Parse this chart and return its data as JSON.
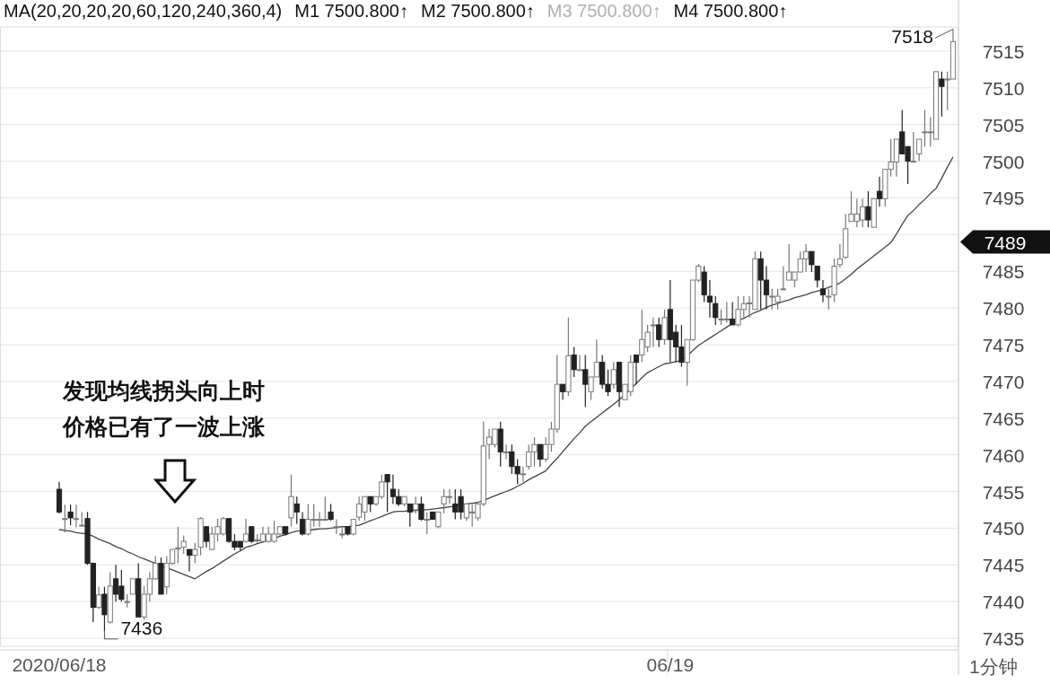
{
  "chart_data": {
    "type": "candlestick",
    "categories": [
      "2020/06/18",
      null,
      null,
      null,
      null,
      null,
      null,
      null,
      null,
      null,
      null,
      null,
      null,
      null,
      null,
      null,
      null,
      null,
      null,
      null,
      null,
      null,
      null,
      null,
      null,
      null,
      null,
      null,
      null,
      null,
      null,
      null,
      null,
      null,
      null,
      null,
      null,
      null,
      null,
      null,
      null,
      null,
      null,
      null,
      null,
      null,
      null,
      null,
      null,
      null,
      null,
      null,
      null,
      null,
      null,
      null,
      null,
      null,
      null,
      null,
      null,
      null,
      null,
      null,
      null,
      null,
      null,
      null,
      null,
      null,
      null,
      null,
      null,
      null,
      null,
      null,
      null,
      null,
      null,
      null,
      null,
      null,
      null,
      null,
      null,
      null,
      null,
      null,
      null,
      null,
      null,
      null,
      null,
      null,
      null,
      null,
      null,
      null,
      null,
      null,
      null,
      null,
      null,
      null,
      null,
      null,
      null,
      null,
      "06/19",
      null,
      null,
      null,
      null,
      null,
      null,
      null,
      null,
      null,
      null,
      null,
      null,
      null,
      null,
      null,
      null,
      null,
      null,
      null,
      null,
      null,
      null,
      null,
      null,
      null,
      null,
      null,
      null,
      null,
      null,
      null,
      null,
      null,
      null,
      null,
      null,
      null,
      null,
      null,
      null,
      null,
      null,
      null,
      null,
      null,
      null,
      null,
      null,
      null,
      null
    ],
    "ohlc": [
      [
        7455.3,
        7456.3,
        7452,
        7452.2
      ],
      [
        7451.3,
        7453.2,
        7449.4,
        7451.3
      ],
      [
        7452.2,
        7453.2,
        7450.4,
        7451.4
      ],
      [
        7451.3,
        7453.2,
        7450.1,
        7451.3
      ],
      [
        7450.4,
        7452.2,
        7450.2,
        7450.4
      ],
      [
        7451.3,
        7452.2,
        7445,
        7445.2
      ],
      [
        7445.2,
        7445.3,
        7437.2,
        7439.2
      ],
      [
        7439.2,
        7442,
        7439,
        7440.9
      ],
      [
        7441,
        7442,
        7436,
        7438.2
      ],
      [
        7437.2,
        7444,
        7437,
        7442.1
      ],
      [
        7443.1,
        7445,
        7440,
        7441
      ],
      [
        7442.1,
        7444.3,
        7440,
        7440.3
      ],
      [
        7440,
        7441,
        7439.2,
        7440
      ],
      [
        7441,
        7443.1,
        7441,
        7443.1
      ],
      [
        7443.1,
        7445.2,
        7437.9,
        7437.9
      ],
      [
        7437.9,
        7442.1,
        7437.5,
        7441
      ],
      [
        7441,
        7444,
        7440,
        7443.1
      ],
      [
        7443.1,
        7446.2,
        7443,
        7445.2
      ],
      [
        7445.2,
        7446,
        7441,
        7441
      ],
      [
        7442,
        7446.2,
        7441,
        7445.2
      ],
      [
        7445.2,
        7447.1,
        7445,
        7447.1
      ],
      [
        7447.3,
        7450.2,
        7445.2,
        7447.3
      ],
      [
        7447.4,
        7449,
        7446.5,
        7448.2
      ],
      [
        7447.1,
        7447.1,
        7444.1,
        7446.3
      ],
      [
        7446.3,
        7448,
        7445.2,
        7447.1
      ],
      [
        7447.4,
        7451.5,
        7446.3,
        7451.3
      ],
      [
        7450.2,
        7450.3,
        7447.4,
        7448.2
      ],
      [
        7447.1,
        7450.2,
        7447,
        7449.2
      ],
      [
        7449.2,
        7451.3,
        7448.2,
        7450.2
      ],
      [
        7449.2,
        7451.5,
        7449,
        7451.3
      ],
      [
        7451.3,
        7451.4,
        7448,
        7448.2
      ],
      [
        7448.2,
        7449.2,
        7447,
        7447.4
      ],
      [
        7448.2,
        7448.2,
        7447,
        7447.4
      ],
      [
        7448.2,
        7451.3,
        7448,
        7449.2
      ],
      [
        7450.2,
        7450.3,
        7448,
        7448.2
      ],
      [
        7448.4,
        7449.2,
        7448,
        7448.4
      ],
      [
        7448.2,
        7450.2,
        7448,
        7449.2
      ],
      [
        7448.2,
        7450.2,
        7448,
        7449.2
      ],
      [
        7448.2,
        7451,
        7448,
        7449.2
      ],
      [
        7449.2,
        7450.2,
        7449,
        7450.2
      ],
      [
        7450.2,
        7450.2,
        7449,
        7449.2
      ],
      [
        7451.4,
        7457.3,
        7450.2,
        7454.3
      ],
      [
        7453.3,
        7454.3,
        7450.6,
        7452.2
      ],
      [
        7451.2,
        7452.2,
        7449,
        7449.2
      ],
      [
        7449.2,
        7453.3,
        7449,
        7451.2
      ],
      [
        7451.2,
        7453.3,
        7450.2,
        7451.2
      ],
      [
        7451.2,
        7452.2,
        7450.2,
        7451.2
      ],
      [
        7451.2,
        7454.3,
        7451,
        7451.2
      ],
      [
        7452.2,
        7453.3,
        7451,
        7451.2
      ],
      [
        7450.2,
        7451.2,
        7449.2,
        7450.2
      ],
      [
        7449.2,
        7450,
        7448.6,
        7449.2
      ],
      [
        7450.2,
        7450.2,
        7449,
        7449.2
      ],
      [
        7449.2,
        7451.2,
        7449,
        7451.2
      ],
      [
        7451.5,
        7454.3,
        7451,
        7453.3
      ],
      [
        7452.2,
        7454.3,
        7451,
        7454.3
      ],
      [
        7454.3,
        7454.3,
        7452.2,
        7453.3
      ],
      [
        7453.3,
        7454.3,
        7453,
        7454.3
      ],
      [
        7454.3,
        7457.3,
        7454,
        7456.3
      ],
      [
        7457.3,
        7457.3,
        7452.2,
        7456.3
      ],
      [
        7455.3,
        7457.3,
        7453.3,
        7454.3
      ],
      [
        7454.3,
        7455.3,
        7453,
        7453.3
      ],
      [
        7453.3,
        7454.3,
        7453,
        7454.3
      ],
      [
        7453.3,
        7453.3,
        7450.2,
        7452.2
      ],
      [
        7452.5,
        7454.3,
        7452,
        7453.3
      ],
      [
        7453.3,
        7454.3,
        7451,
        7451.2
      ],
      [
        7451.2,
        7452.2,
        7449.2,
        7451.2
      ],
      [
        7452.2,
        7452.2,
        7451.2,
        7451.2
      ],
      [
        7450.2,
        7452.2,
        7450,
        7452.2
      ],
      [
        7453.3,
        7455.3,
        7452,
        7454.3
      ],
      [
        7454.3,
        7455.3,
        7453.3,
        7454.3
      ],
      [
        7453.3,
        7455.3,
        7451.2,
        7452.2
      ],
      [
        7454.3,
        7455.3,
        7451.2,
        7452.2
      ],
      [
        7451.4,
        7453.3,
        7451,
        7453.3
      ],
      [
        7452.2,
        7453.3,
        7450.2,
        7452.2
      ],
      [
        7451.4,
        7453.3,
        7451,
        7453.3
      ],
      [
        7453.3,
        7464.5,
        7453,
        7461.2
      ],
      [
        7461.4,
        7463.5,
        7459.4,
        7462.4
      ],
      [
        7461.4,
        7463.5,
        7461,
        7463.5
      ],
      [
        7463.5,
        7464.5,
        7458.4,
        7460.4
      ],
      [
        7460.4,
        7461.4,
        7459.4,
        7460.4
      ],
      [
        7460.4,
        7461.4,
        7457.4,
        7458.4
      ],
      [
        7458.4,
        7459.4,
        7456,
        7457.4
      ],
      [
        7457.4,
        7458.4,
        7456.3,
        7457.4
      ],
      [
        7458.4,
        7461.4,
        7458,
        7460.4
      ],
      [
        7460.4,
        7462.4,
        7458.4,
        7461.4
      ],
      [
        7461.4,
        7461.4,
        7458.4,
        7459.4
      ],
      [
        7459.4,
        7462.4,
        7459,
        7461.4
      ],
      [
        7461.4,
        7464.5,
        7460.4,
        7463.5
      ],
      [
        7463.5,
        7473.6,
        7463,
        7469.6
      ],
      [
        7469.6,
        7469.6,
        7467.5,
        7468.6
      ],
      [
        7468.6,
        7478.7,
        7468,
        7473.5
      ],
      [
        7473.6,
        7474.7,
        7470.6,
        7471.6
      ],
      [
        7471.6,
        7473.6,
        7471.4,
        7471.6
      ],
      [
        7471.6,
        7473.6,
        7466.5,
        7469.6
      ],
      [
        7468.6,
        7470.6,
        7467.5,
        7470.6
      ],
      [
        7470.6,
        7475.7,
        7470.6,
        7472.6
      ],
      [
        7472.6,
        7473.6,
        7469,
        7469.6
      ],
      [
        7469.6,
        7471.6,
        7468,
        7468.6
      ],
      [
        7469.6,
        7472.6,
        7469,
        7471.6
      ],
      [
        7472.6,
        7472.6,
        7466.5,
        7468.6
      ],
      [
        7467.5,
        7469.6,
        7467.5,
        7469.6
      ],
      [
        7468.6,
        7473.6,
        7468,
        7472.6
      ],
      [
        7473.6,
        7473.6,
        7469.6,
        7472.6
      ],
      [
        7473.6,
        7479.8,
        7472.6,
        7475.7
      ],
      [
        7474.7,
        7477.7,
        7474,
        7476.7
      ],
      [
        7477.7,
        7478.7,
        7474.7,
        7477.7
      ],
      [
        7477.7,
        7478.7,
        7474.7,
        7475.7
      ],
      [
        7475.7,
        7479.8,
        7475,
        7478.7
      ],
      [
        7479.8,
        7483.8,
        7472.6,
        7475.7
      ],
      [
        7476.7,
        7477.7,
        7472.6,
        7474.7
      ],
      [
        7474.7,
        7477.7,
        7472,
        7472.6
      ],
      [
        7472.6,
        7475.7,
        7469.4,
        7475.7
      ],
      [
        7475.7,
        7483.8,
        7475.5,
        7483.8
      ],
      [
        7483.8,
        7486,
        7483.5,
        7485.7
      ],
      [
        7484.9,
        7485.7,
        7480.8,
        7481.8
      ],
      [
        7481.6,
        7483.8,
        7478.7,
        7480.8
      ],
      [
        7480.6,
        7481.6,
        7477.7,
        7478.7
      ],
      [
        7478.5,
        7479.8,
        7477.7,
        7478.5
      ],
      [
        7478.5,
        7480.8,
        7478,
        7478.5
      ],
      [
        7478.5,
        7480.8,
        7477.7,
        7477.7
      ],
      [
        7477.7,
        7481.6,
        7477.5,
        7479.8
      ],
      [
        7479.8,
        7481.6,
        7478.7,
        7480.6
      ],
      [
        7480.7,
        7481.6,
        7478.7,
        7480.7
      ],
      [
        7479.8,
        7487.7,
        7479.8,
        7486.7
      ],
      [
        7486.7,
        7487.7,
        7479.8,
        7483.8
      ],
      [
        7483.8,
        7485.7,
        7479.8,
        7481.8
      ],
      [
        7481.6,
        7482.6,
        7479.8,
        7481.6
      ],
      [
        7480.8,
        7482.6,
        7479.8,
        7481.6
      ],
      [
        7482.6,
        7485.7,
        7482.6,
        7482.6
      ],
      [
        7483.8,
        7488.7,
        7483.8,
        7484.9
      ],
      [
        7483.8,
        7484.9,
        7482.8,
        7484.9
      ],
      [
        7484.9,
        7487.7,
        7484.9,
        7486.7
      ],
      [
        7486.7,
        7488.7,
        7484.9,
        7487.7
      ],
      [
        7487.7,
        7487.7,
        7484.9,
        7485.9
      ],
      [
        7485.7,
        7485.7,
        7482.8,
        7483.8
      ],
      [
        7482.6,
        7483.8,
        7480.8,
        7481.8
      ],
      [
        7481.6,
        7482.6,
        7479.8,
        7481.6
      ],
      [
        7481.8,
        7486.7,
        7480.8,
        7485.7
      ],
      [
        7485.9,
        7488.7,
        7485.5,
        7486.7
      ],
      [
        7486.9,
        7492.8,
        7486.7,
        7490.8
      ],
      [
        7491.8,
        7495.9,
        7491.8,
        7492.8
      ],
      [
        7491.8,
        7494.9,
        7491,
        7492.8
      ],
      [
        7492,
        7494.9,
        7491,
        7493.8
      ],
      [
        7493.8,
        7495.9,
        7491,
        7492
      ],
      [
        7491,
        7494.9,
        7491,
        7494.9
      ],
      [
        7495.9,
        7497.9,
        7493.8,
        7494.9
      ],
      [
        7494.9,
        7498.9,
        7493.8,
        7498.9
      ],
      [
        7498.9,
        7503,
        7497.9,
        7499.9
      ],
      [
        7499.9,
        7503,
        7497.9,
        7503
      ],
      [
        7504,
        7507,
        7501,
        7501
      ],
      [
        7502,
        7502,
        7496.9,
        7500
      ],
      [
        7500,
        7504,
        7500,
        7500
      ],
      [
        7501,
        7503,
        7500,
        7503
      ],
      [
        7504,
        7507,
        7502,
        7504
      ],
      [
        7504,
        7506,
        7502,
        7504
      ],
      [
        7503,
        7512.2,
        7503,
        7512.2
      ],
      [
        7511.2,
        7512.2,
        7506.1,
        7510.2
      ],
      [
        7511.2,
        7512.2,
        7507,
        7511.2
      ],
      [
        7511.2,
        7518,
        7511.2,
        7516.3
      ]
    ],
    "series": [
      {
        "type": "line",
        "color": "#444444",
        "values": [
          7449.8,
          7449.7,
          7449.6,
          7449.4,
          7449.3,
          7449.2,
          7448.9,
          7448.5,
          7448.2,
          7447.9,
          7447.5,
          7447.2,
          7446.8,
          7446.5,
          7446.1,
          7445.8,
          7445.5,
          7445.2,
          7444.9,
          7444.6,
          7444.3,
          7444.0,
          7443.7,
          7443.4,
          7443.1,
          7443.6,
          7444.1,
          7444.5,
          7445.0,
          7445.5,
          7446.0,
          7446.5,
          7446.9,
          7447.4,
          7447.6,
          7447.9,
          7448.1,
          7448.4,
          7448.6,
          7448.9,
          7449.1,
          7449.4,
          7449.6,
          7449.7,
          7449.7,
          7449.8,
          7449.9,
          7449.9,
          7450.0,
          7450.1,
          7450.2,
          7450.2,
          7450.3,
          7450.4,
          7450.7,
          7451.0,
          7451.3,
          7451.6,
          7451.9,
          7452.2,
          7452.3,
          7452.3,
          7452.4,
          7452.4,
          7452.5,
          7452.5,
          7452.6,
          7452.7,
          7452.8,
          7452.9,
          7453.0,
          7453.2,
          7453.3,
          7453.4,
          7453.5,
          7453.8,
          7454.1,
          7454.4,
          7454.7,
          7455.0,
          7455.3,
          7455.7,
          7456.1,
          7456.6,
          7457.0,
          7457.4,
          7457.8,
          7458.7,
          7459.5,
          7460.4,
          7461.3,
          7462.2,
          7463.0,
          7463.9,
          7464.5,
          7465.1,
          7465.7,
          7466.3,
          7466.9,
          7467.5,
          7468.2,
          7469.0,
          7469.7,
          7470.5,
          7471.2,
          7471.6,
          7472.0,
          7472.4,
          7472.5,
          7472.7,
          7472.8,
          7473.5,
          7474.2,
          7474.9,
          7475.4,
          7475.9,
          7476.4,
          7476.9,
          7477.4,
          7477.9,
          7478.3,
          7478.6,
          7479.0,
          7479.4,
          7479.7,
          7480.1,
          7480.4,
          7480.6,
          7480.9,
          7481.1,
          7481.4,
          7481.6,
          7481.8,
          7482.1,
          7482.3,
          7482.5,
          7482.8,
          7483.1,
          7483.4,
          7484.0,
          7484.6,
          7485.3,
          7485.9,
          7486.5,
          7487.1,
          7487.7,
          7488.3,
          7488.9,
          7490.1,
          7491.4,
          7492.6,
          7493.3,
          7494.1,
          7494.8,
          7495.6,
          7496.3,
          7497.7,
          7499.2,
          7500.6
        ]
      }
    ],
    "ylim": [
      7433.9,
      7518.3
    ],
    "yticks": [
      7435,
      7440,
      7445,
      7450,
      7455,
      7460,
      7465,
      7470,
      7475,
      7480,
      7485,
      {
        "value": 7489,
        "label": "7489"
      },
      {
        "value": 7490,
        "label": null
      },
      7495,
      7500,
      7505,
      7510,
      7515
    ],
    "grid": "y",
    "annotations": [
      "MA(20,20,20,20,60,120,240,360,4)",
      "M1 7500.800↑",
      "M2 7500.800↑",
      "M3 7500.800↑",
      "M4 7500.800↑",
      "发现均线拐头向上时",
      "价格已有了一波上涨",
      "7518",
      "7436",
      "1分钟"
    ]
  }
}
